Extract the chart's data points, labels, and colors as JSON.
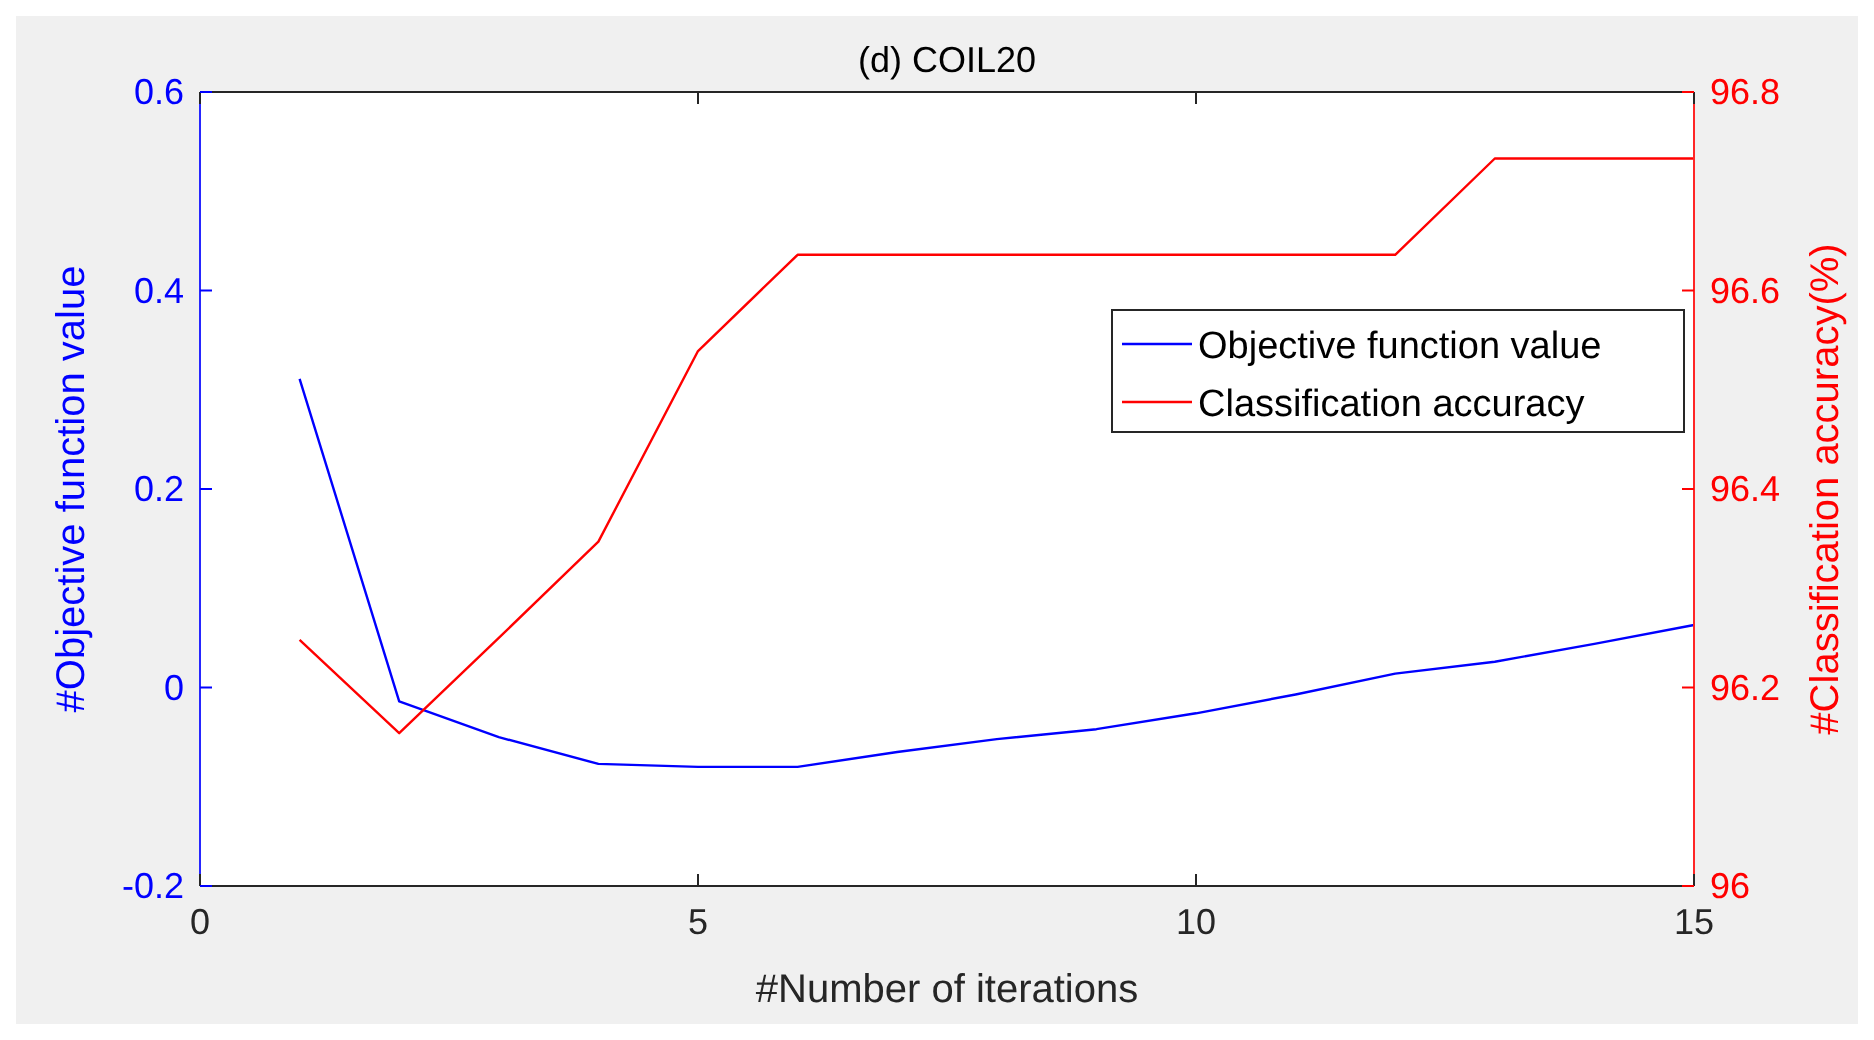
{
  "chart_data": {
    "type": "line",
    "title": "(d) COIL20",
    "xlabel": "#Number of iterations",
    "ylabel": "#Objective function value",
    "y2label": "#Classification accuracy(%)",
    "x": [
      1,
      2,
      3,
      4,
      5,
      6,
      7,
      8,
      9,
      10,
      11,
      12,
      13,
      14,
      15
    ],
    "xlim": [
      0,
      15
    ],
    "xticks": [
      0,
      5,
      10,
      15
    ],
    "ylim": [
      -0.2,
      0.6
    ],
    "yticks": [
      -0.2,
      0,
      0.2,
      0.4,
      0.6
    ],
    "y2lim": [
      96,
      96.8
    ],
    "y2ticks": [
      96,
      96.2,
      96.4,
      96.6,
      96.8
    ],
    "legend": "top right",
    "grid": false,
    "marker": "none",
    "line_style": "solid",
    "series": [
      {
        "name": "Objective function value",
        "color": "#0000ff",
        "values": [
          0.311,
          -0.014,
          -0.05,
          -0.077,
          -0.08,
          -0.08,
          -0.065,
          -0.052,
          -0.042,
          -0.026,
          -0.007,
          0.014,
          0.026,
          0.044,
          0.063
        ]
      },
      {
        "name": "Classification accuracy",
        "color": "#ff0000",
        "axis": "y2",
        "values": [
          96.248,
          96.154,
          96.25,
          96.347,
          96.539,
          96.636,
          96.636,
          96.636,
          96.636,
          96.636,
          96.636,
          96.636,
          96.733,
          96.733,
          96.733
        ]
      }
    ]
  }
}
